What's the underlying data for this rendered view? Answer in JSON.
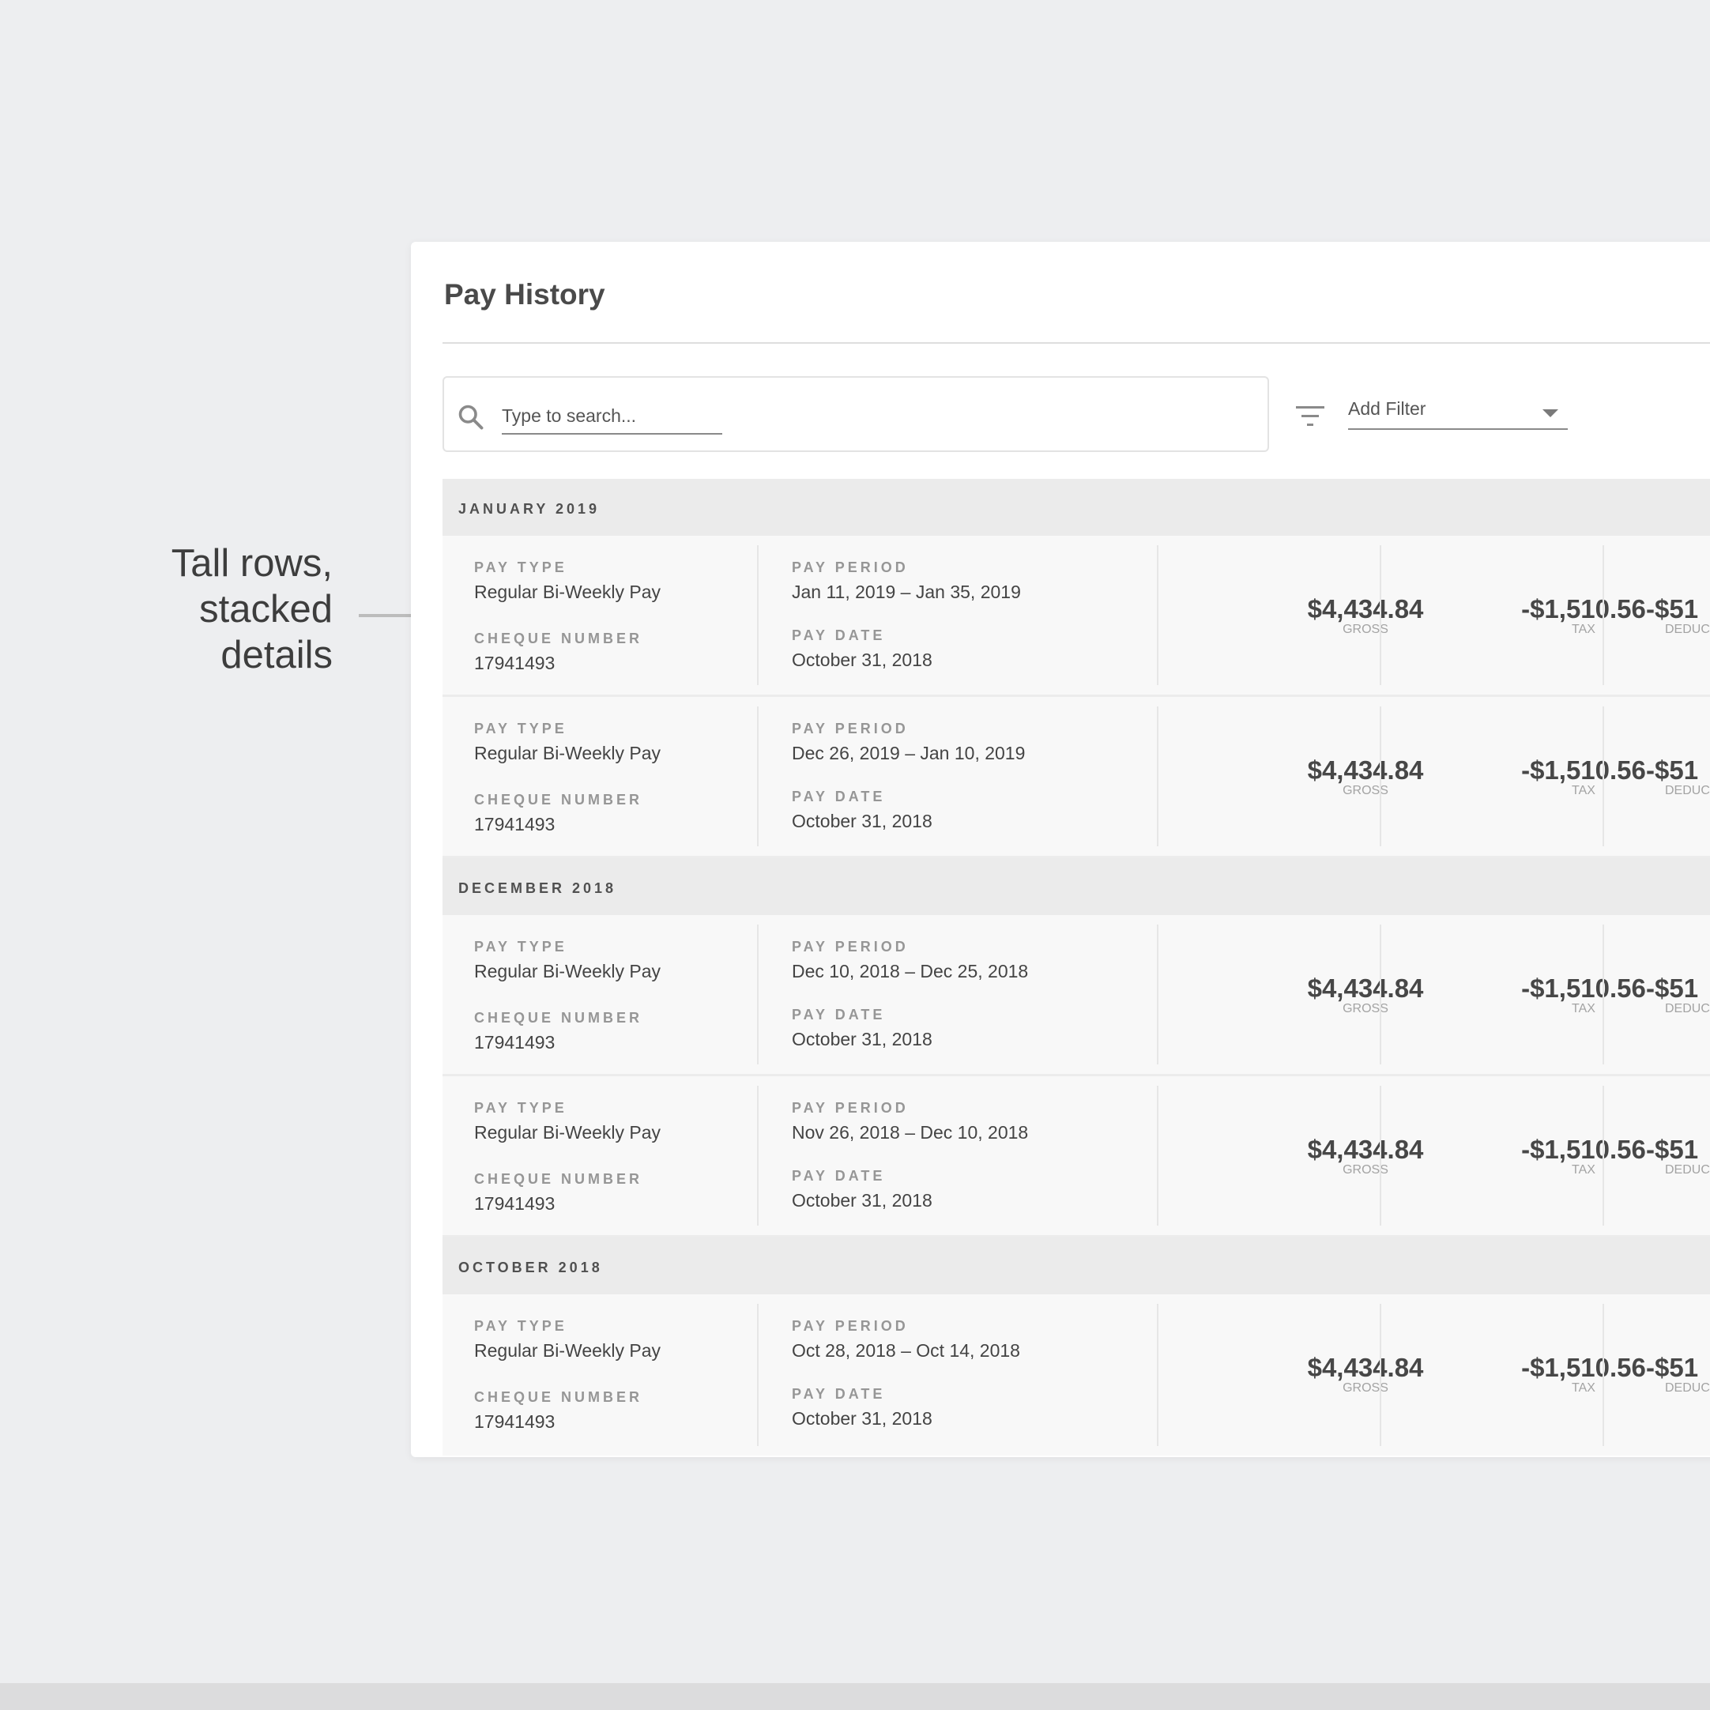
{
  "annotation": {
    "text": "Tall rows,\nstacked\ndetails"
  },
  "page": {
    "title": "Pay History"
  },
  "search": {
    "placeholder": "Type to search..."
  },
  "filter": {
    "label": "Add Filter"
  },
  "labels": {
    "pay_type": "PAY TYPE",
    "cheque_number": "CHEQUE NUMBER",
    "pay_period": "PAY PERIOD",
    "pay_date": "PAY DATE",
    "gross": "GROSS",
    "tax": "TAX",
    "deductions": "DEDUC"
  },
  "groups": [
    {
      "month": "JANUARY 2019",
      "rows": [
        {
          "pay_type": "Regular Bi-Weekly Pay",
          "cheque_number": "17941493",
          "pay_period": "Jan 11, 2019 – Jan 35, 2019",
          "pay_date": "October 31, 2018",
          "gross": "$4,434.84",
          "tax": "-$1,510.56",
          "deductions": "-$51"
        },
        {
          "pay_type": "Regular Bi-Weekly Pay",
          "cheque_number": "17941493",
          "pay_period": "Dec 26, 2019 – Jan 10, 2019",
          "pay_date": "October 31, 2018",
          "gross": "$4,434.84",
          "tax": "-$1,510.56",
          "deductions": "-$51"
        }
      ]
    },
    {
      "month": "DECEMBER 2018",
      "rows": [
        {
          "pay_type": "Regular Bi-Weekly Pay",
          "cheque_number": "17941493",
          "pay_period": "Dec 10, 2018 – Dec 25, 2018",
          "pay_date": "October 31, 2018",
          "gross": "$4,434.84",
          "tax": "-$1,510.56",
          "deductions": "-$51"
        },
        {
          "pay_type": "Regular Bi-Weekly Pay",
          "cheque_number": "17941493",
          "pay_period": "Nov 26, 2018 – Dec 10, 2018",
          "pay_date": "October 31, 2018",
          "gross": "$4,434.84",
          "tax": "-$1,510.56",
          "deductions": "-$51"
        }
      ]
    },
    {
      "month": "OCTOBER 2018",
      "rows": [
        {
          "pay_type": "Regular Bi-Weekly Pay",
          "cheque_number": "17941493",
          "pay_period": "Oct 28, 2018 – Oct 14, 2018",
          "pay_date": "October 31, 2018",
          "gross": "$4,434.84",
          "tax": "-$1,510.56",
          "deductions": "-$51"
        }
      ]
    }
  ]
}
